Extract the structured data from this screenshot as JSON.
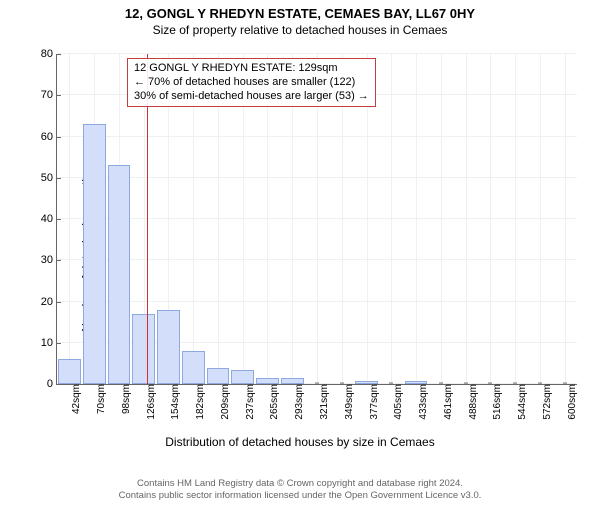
{
  "title_main": "12, GONGL Y RHEDYN ESTATE, CEMAES BAY, LL67 0HY",
  "title_sub": "Size of property relative to detached houses in Cemaes",
  "ylabel": "Number of detached properties",
  "xlabel": "Distribution of detached houses by size in Cemaes",
  "chart": {
    "type": "bar",
    "ylim": [
      0,
      80
    ],
    "ytick_step": 10,
    "yticks": [
      0,
      10,
      20,
      30,
      40,
      50,
      60,
      70,
      80
    ],
    "xticks_labels": [
      "42sqm",
      "70sqm",
      "98sqm",
      "126sqm",
      "154sqm",
      "182sqm",
      "209sqm",
      "237sqm",
      "265sqm",
      "293sqm",
      "321sqm",
      "349sqm",
      "377sqm",
      "405sqm",
      "433sqm",
      "461sqm",
      "488sqm",
      "516sqm",
      "544sqm",
      "572sqm",
      "600sqm"
    ],
    "xticks_positions": [
      0,
      1,
      2,
      3,
      4,
      5,
      6,
      7,
      8,
      9,
      10,
      11,
      12,
      13,
      14,
      15,
      16,
      17,
      18,
      19,
      20
    ],
    "bars": [
      {
        "pos": 0,
        "value": 6
      },
      {
        "pos": 1,
        "value": 63
      },
      {
        "pos": 2,
        "value": 53
      },
      {
        "pos": 3,
        "value": 17
      },
      {
        "pos": 4,
        "value": 18
      },
      {
        "pos": 5,
        "value": 8
      },
      {
        "pos": 6,
        "value": 4
      },
      {
        "pos": 7,
        "value": 3.5
      },
      {
        "pos": 8,
        "value": 1.5
      },
      {
        "pos": 9,
        "value": 1.5
      },
      {
        "pos": 12,
        "value": 0.8
      },
      {
        "pos": 14,
        "value": 0.8
      }
    ],
    "bar_fill": "#d2defa",
    "bar_stroke": "#90a8e0",
    "grid_color": "#eef0f4",
    "background_color": "#ffffff",
    "reference_line": {
      "x_value": 129,
      "x_min": 42,
      "x_max": 600,
      "color": "#d03030"
    },
    "info_box": {
      "line1": "12 GONGL Y RHEDYN ESTATE: 129sqm",
      "line2": "← 70% of detached houses are smaller (122)",
      "line3": "30% of semi-detached houses are larger (53) →",
      "border_color": "#c04040"
    }
  },
  "footer_line1": "Contains HM Land Registry data © Crown copyright and database right 2024.",
  "footer_line2": "Contains public sector information licensed under the Open Government Licence v3.0."
}
